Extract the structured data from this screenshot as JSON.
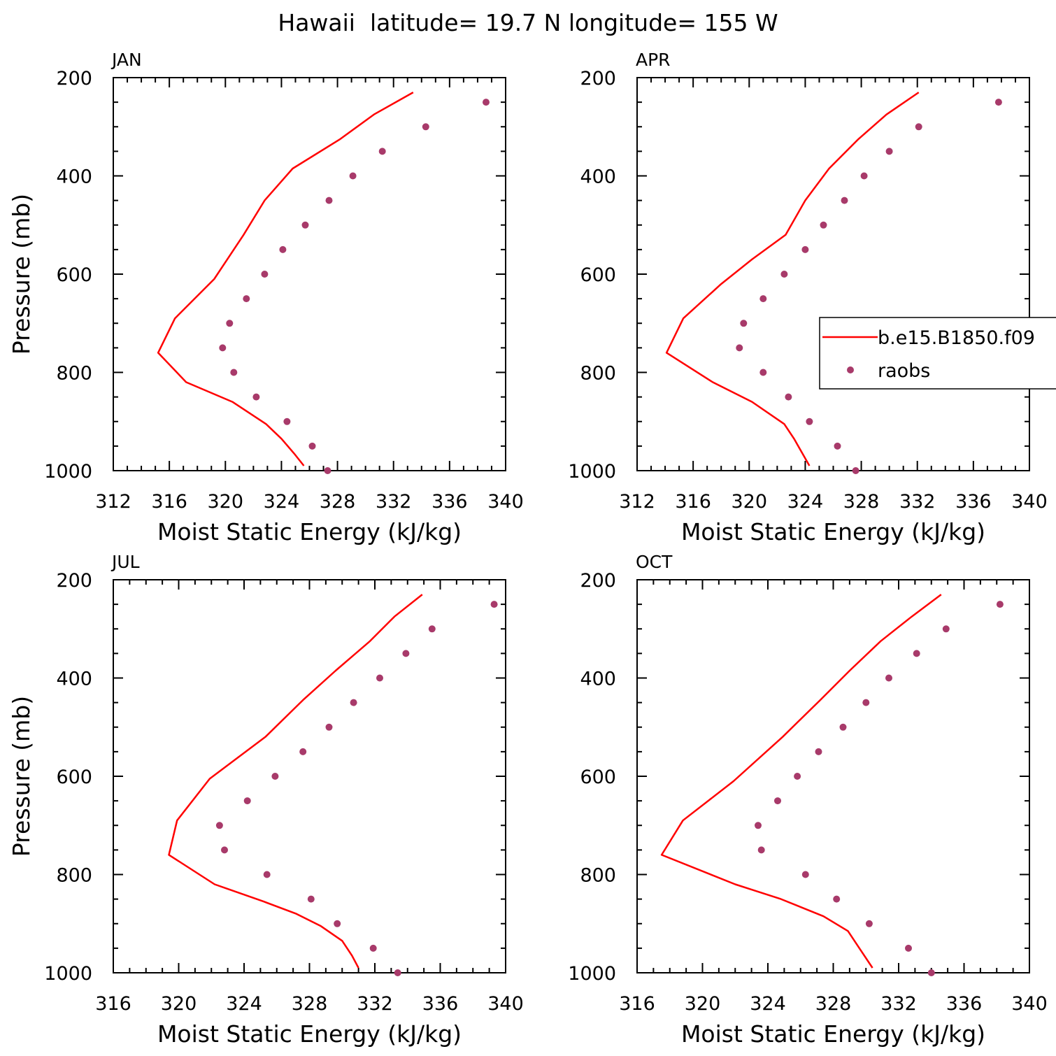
{
  "figure": {
    "title": "Hawaii  latitude= 19.7 N longitude= 155 W",
    "colors": {
      "model": "#ff0000",
      "obs": "#a83a6a",
      "axis": "#000000"
    },
    "legend": {
      "entries": [
        {
          "label": "b.e15.B1850.f09",
          "kind": "line"
        },
        {
          "label": "raobs",
          "kind": "marker"
        }
      ],
      "placement": "right, inside APR panel"
    }
  },
  "chart_data": [
    {
      "type": "line",
      "title": "JAN",
      "xlabel": "Moist Static Energy (kJ/kg)",
      "ylabel": "Pressure (mb)",
      "xlim": [
        312,
        340
      ],
      "xticks": [
        "312",
        "316",
        "320",
        "324",
        "328",
        "332",
        "336",
        "340"
      ],
      "ylim": [
        200,
        1000
      ],
      "yticks": [
        "200",
        "400",
        "600",
        "800",
        "1000"
      ],
      "y_inverted": true,
      "series": [
        {
          "name": "b.e15.B1850.f09",
          "style": "line",
          "x": [
            333.4,
            330.6,
            328.2,
            324.8,
            322.8,
            321.3,
            319.2,
            316.4,
            315.2,
            317.2,
            320.5,
            322.9,
            324.0,
            324.9,
            325.6
          ],
          "y": [
            230,
            275,
            325,
            385,
            450,
            520,
            610,
            690,
            760,
            820,
            860,
            905,
            935,
            965,
            990
          ]
        },
        {
          "name": "raobs",
          "style": "marker",
          "x": [
            338.6,
            334.3,
            331.2,
            329.1,
            327.4,
            325.7,
            324.1,
            322.8,
            321.5,
            320.3,
            319.8,
            320.6,
            322.2,
            324.4,
            326.2,
            327.3
          ],
          "y": [
            250,
            300,
            350,
            400,
            450,
            500,
            550,
            600,
            650,
            700,
            750,
            800,
            850,
            900,
            950,
            1000
          ]
        }
      ]
    },
    {
      "type": "line",
      "title": "APR",
      "xlabel": "Moist Static Energy (kJ/kg)",
      "ylabel": "",
      "xlim": [
        312,
        340
      ],
      "xticks": [
        "312",
        "316",
        "320",
        "324",
        "328",
        "332",
        "336",
        "340"
      ],
      "ylim": [
        200,
        1000
      ],
      "yticks": [
        "200",
        "400",
        "600",
        "800",
        "1000"
      ],
      "y_inverted": true,
      "series": [
        {
          "name": "b.e15.B1850.f09",
          "style": "line",
          "x": [
            332.1,
            329.8,
            327.8,
            325.7,
            324.0,
            322.6,
            320.2,
            318.0,
            315.3,
            314.1,
            317.4,
            320.2,
            322.5,
            323.2,
            323.8,
            324.3
          ],
          "y": [
            230,
            275,
            325,
            385,
            450,
            520,
            570,
            620,
            690,
            760,
            820,
            860,
            905,
            935,
            965,
            990
          ]
        },
        {
          "name": "raobs",
          "style": "marker",
          "x": [
            337.8,
            332.1,
            330.0,
            328.2,
            326.8,
            325.3,
            324.0,
            322.5,
            321.0,
            319.6,
            319.3,
            321.0,
            322.8,
            324.3,
            326.3,
            327.6
          ],
          "y": [
            250,
            300,
            350,
            400,
            450,
            500,
            550,
            600,
            650,
            700,
            750,
            800,
            850,
            900,
            950,
            1000
          ]
        }
      ]
    },
    {
      "type": "line",
      "title": "JUL",
      "xlabel": "Moist Static Energy (kJ/kg)",
      "ylabel": "Pressure (mb)",
      "xlim": [
        316,
        340
      ],
      "xticks": [
        "316",
        "320",
        "324",
        "328",
        "332",
        "336",
        "340"
      ],
      "ylim": [
        200,
        1000
      ],
      "yticks": [
        "200",
        "400",
        "600",
        "800",
        "1000"
      ],
      "y_inverted": true,
      "series": [
        {
          "name": "b.e15.B1850.f09",
          "style": "line",
          "x": [
            334.9,
            333.2,
            331.7,
            329.6,
            327.6,
            325.3,
            321.9,
            319.9,
            319.4,
            322.2,
            325.2,
            327.2,
            328.7,
            330.0,
            330.6,
            331.0
          ],
          "y": [
            230,
            275,
            325,
            385,
            445,
            520,
            605,
            690,
            760,
            820,
            855,
            880,
            905,
            935,
            965,
            990
          ]
        },
        {
          "name": "raobs",
          "style": "marker",
          "x": [
            339.3,
            335.5,
            333.9,
            332.3,
            330.7,
            329.2,
            327.6,
            325.9,
            324.2,
            322.5,
            322.8,
            325.4,
            328.1,
            329.7,
            331.9,
            333.4
          ],
          "y": [
            250,
            300,
            350,
            400,
            450,
            500,
            550,
            600,
            650,
            700,
            750,
            800,
            850,
            900,
            950,
            1000
          ]
        }
      ]
    },
    {
      "type": "line",
      "title": "OCT",
      "xlabel": "Moist Static Energy (kJ/kg)",
      "ylabel": "",
      "xlim": [
        316,
        340
      ],
      "xticks": [
        "316",
        "320",
        "324",
        "328",
        "332",
        "336",
        "340"
      ],
      "ylim": [
        200,
        1000
      ],
      "yticks": [
        "200",
        "400",
        "600",
        "800",
        "1000"
      ],
      "y_inverted": true,
      "series": [
        {
          "name": "b.e15.B1850.f09",
          "style": "line",
          "x": [
            334.6,
            332.8,
            330.9,
            329.0,
            327.2,
            324.9,
            321.9,
            318.8,
            317.5,
            322.0,
            324.8,
            327.4,
            328.9,
            329.7,
            330.4
          ],
          "y": [
            230,
            275,
            325,
            385,
            445,
            520,
            610,
            690,
            760,
            820,
            850,
            885,
            915,
            955,
            990
          ]
        },
        {
          "name": "raobs",
          "style": "marker",
          "x": [
            338.2,
            334.9,
            333.1,
            331.4,
            330.0,
            328.6,
            327.1,
            325.8,
            324.6,
            323.4,
            323.6,
            326.3,
            328.2,
            330.2,
            332.6,
            334.0
          ],
          "y": [
            250,
            300,
            350,
            400,
            450,
            500,
            550,
            600,
            650,
            700,
            750,
            800,
            850,
            900,
            950,
            1000
          ]
        }
      ]
    }
  ]
}
